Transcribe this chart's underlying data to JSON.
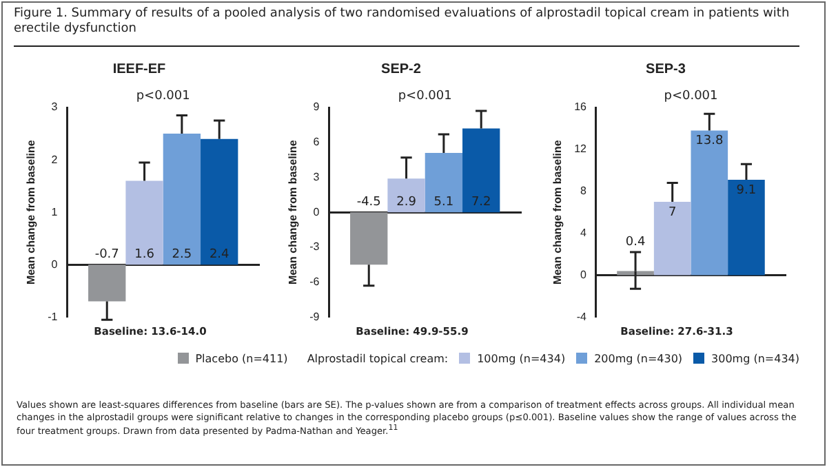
{
  "chart_data": [
    {
      "type": "bar",
      "title": "IEEF-EF",
      "xlabel": "Baseline: 13.6-14.0",
      "ylabel": "Mean change from baseline",
      "legend": "bottom",
      "legend_title": "Alprostadil topical cream:",
      "categories": [
        null
      ],
      "ylim": [
        -1,
        3
      ],
      "yticks": [
        -1,
        0,
        1,
        2,
        3
      ],
      "data_labels": true,
      "annotations": [
        "Figure 1.  Summary of results of a pooled analysis of two randomised evaluations of alprostadil topical cream in patients with erectile dysfunction",
        "p<0.001",
        "Values shown are least-squares differences from baseline (bars are SE).  The p-values shown are from a comparison of treatment effects across groups.  All individual mean changes in the alprostadil groups were significant relative to changes in the corresponding placebo groups (p≤0.001).  Baseline values show the range of values across the four treatment groups. Drawn from data presented by Padma-Nathan and Yeager.$^{11}$"
      ],
      "series": [
        {
          "name": "Placebo (n=411)",
          "color": "#939598",
          "values": [
            -0.7
          ],
          "errors": [
            [
              -1.05,
              -0.7
            ]
          ]
        },
        {
          "name": "100mg (n=434)",
          "color": "#b3bfe3",
          "values": [
            1.6
          ],
          "errors": [
            [
              1.6,
              1.95
            ]
          ]
        },
        {
          "name": "200mg (n=430)",
          "color": "#6f9fd8",
          "values": [
            2.5
          ],
          "errors": [
            [
              2.5,
              2.85
            ]
          ]
        },
        {
          "name": "300mg (n=434)",
          "color": "#0a5aa8",
          "values": [
            2.4
          ],
          "errors": [
            [
              2.4,
              2.75
            ]
          ]
        }
      ]
    },
    {
      "type": "bar",
      "title": "SEP-2",
      "xlabel": "Baseline: 49.9-55.9",
      "ylabel": "Mean change from baseline",
      "categories": [
        null
      ],
      "ylim": [
        -9,
        9
      ],
      "yticks": [
        -9,
        -6,
        -3,
        0,
        3,
        6,
        9
      ],
      "data_labels": true,
      "annotations": [
        "p<0.001"
      ],
      "series": [
        {
          "color": "#939598",
          "values": [
            -4.5
          ],
          "errors": [
            [
              -6.3,
              -4.5
            ]
          ]
        },
        {
          "color": "#b3bfe3",
          "values": [
            2.9
          ],
          "errors": [
            [
              2.9,
              4.7
            ]
          ]
        },
        {
          "color": "#6f9fd8",
          "values": [
            5.1
          ],
          "errors": [
            [
              5.1,
              6.7
            ]
          ]
        },
        {
          "color": "#0a5aa8",
          "values": [
            7.2
          ],
          "errors": [
            [
              7.2,
              8.7
            ]
          ]
        }
      ]
    },
    {
      "type": "bar",
      "title": "SEP-3",
      "xlabel": "Baseline: 27.6-31.3",
      "ylabel": "Mean change from baseline",
      "categories": [
        null
      ],
      "ylim": [
        -4,
        16
      ],
      "yticks": [
        -4,
        0,
        4,
        8,
        12,
        16
      ],
      "data_labels": true,
      "annotations": [
        "p<0.001"
      ],
      "series": [
        {
          "color": "#939598",
          "values": [
            0.4
          ],
          "errors": [
            [
              -1.3,
              2.2
            ]
          ]
        },
        {
          "color": "#b3bfe3",
          "values": [
            7
          ],
          "errors": [
            [
              7,
              8.8
            ]
          ]
        },
        {
          "color": "#6f9fd8",
          "values": [
            13.8
          ],
          "errors": [
            [
              13.8,
              15.4
            ]
          ]
        },
        {
          "color": "#0a5aa8",
          "values": [
            9.1
          ],
          "errors": [
            [
              9.1,
              10.6
            ]
          ]
        }
      ]
    }
  ]
}
